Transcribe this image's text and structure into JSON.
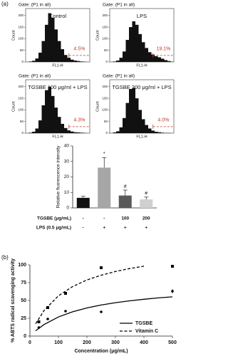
{
  "panel_labels": [
    "(a)",
    "(b)"
  ],
  "chart_data": [
    {
      "type": "histogram",
      "header": "Gate: (P1 in all)",
      "title": "Control",
      "ylabel": "Count",
      "xlabel": "FL1-H",
      "ylim": [
        0,
        230
      ],
      "yticks": [
        0,
        50,
        100,
        150,
        200
      ],
      "xlim": [
        0,
        4
      ],
      "bins": [
        0,
        0.2,
        0.4,
        0.6,
        0.8,
        1,
        1.2,
        1.4,
        1.6,
        1.8,
        2,
        2.2,
        2.4,
        2.6,
        2.8,
        3,
        3.2,
        3.4,
        3.6,
        3.8,
        4
      ],
      "values": [
        0,
        2,
        5,
        15,
        40,
        90,
        160,
        210,
        190,
        140,
        90,
        55,
        30,
        18,
        10,
        6,
        4,
        2,
        1,
        0
      ],
      "color": "#111111",
      "gate_xlim": [
        2.7,
        4
      ],
      "gate_y": 28,
      "annotation": "4.5%"
    },
    {
      "type": "histogram",
      "header": "Gate: (P1 in all)",
      "title": "LPS",
      "ylabel": "Count",
      "xlabel": "FL1-H",
      "ylim": [
        0,
        230
      ],
      "yticks": [
        0,
        50,
        100,
        150,
        200
      ],
      "xlim": [
        0,
        4
      ],
      "bins": [
        0,
        0.2,
        0.4,
        0.6,
        0.8,
        1,
        1.2,
        1.4,
        1.6,
        1.8,
        2,
        2.2,
        2.4,
        2.6,
        2.8,
        3,
        3.2,
        3.4,
        3.6,
        3.8,
        4
      ],
      "values": [
        0,
        2,
        6,
        18,
        45,
        95,
        150,
        175,
        160,
        120,
        85,
        60,
        42,
        32,
        25,
        20,
        14,
        8,
        4,
        1
      ],
      "color": "#111111",
      "gate_xlim": [
        2.7,
        4
      ],
      "gate_y": 28,
      "annotation": "19.1%"
    },
    {
      "type": "histogram",
      "header": "Gate: (P1 in all)",
      "title": "TGSBE 100 μg/ml + LPS",
      "ylabel": "Count",
      "xlabel": "FL1-H",
      "ylim": [
        0,
        230
      ],
      "yticks": [
        0,
        50,
        100,
        150,
        200
      ],
      "xlim": [
        0,
        4
      ],
      "bins": [
        0,
        0.2,
        0.4,
        0.6,
        0.8,
        1,
        1.2,
        1.4,
        1.6,
        1.8,
        2,
        2.2,
        2.4,
        2.6,
        2.8,
        3,
        3.2,
        3.4,
        3.6,
        3.8,
        4
      ],
      "values": [
        0,
        2,
        6,
        20,
        55,
        120,
        185,
        200,
        160,
        110,
        70,
        40,
        22,
        12,
        7,
        4,
        3,
        2,
        1,
        0
      ],
      "color": "#111111",
      "gate_xlim": [
        2.7,
        4
      ],
      "gate_y": 28,
      "annotation": "4.3%"
    },
    {
      "type": "histogram",
      "header": "Gate: (P1 in all)",
      "title": "TGSBE 200 μg/ml + LPS",
      "ylabel": "Count",
      "xlabel": "FL1-H",
      "ylim": [
        0,
        230
      ],
      "yticks": [
        0,
        50,
        100,
        150,
        200
      ],
      "xlim": [
        0,
        4
      ],
      "bins": [
        0,
        0.2,
        0.4,
        0.6,
        0.8,
        1,
        1.2,
        1.4,
        1.6,
        1.8,
        2,
        2.2,
        2.4,
        2.6,
        2.8,
        3,
        3.2,
        3.4,
        3.6,
        3.8,
        4
      ],
      "values": [
        0,
        3,
        8,
        25,
        65,
        130,
        190,
        195,
        150,
        100,
        60,
        35,
        20,
        11,
        6,
        4,
        2,
        1,
        1,
        0
      ],
      "color": "#111111",
      "gate_xlim": [
        2.7,
        4
      ],
      "gate_y": 28,
      "annotation": "4.0%"
    },
    {
      "type": "bar",
      "ylabel": "Relative fluorescence intensity",
      "ylim": [
        0,
        40
      ],
      "yticks": [
        0,
        10,
        20,
        30,
        40
      ],
      "values": [
        6.5,
        26,
        8,
        5.5
      ],
      "errors": [
        1,
        6.5,
        3.5,
        1.5
      ],
      "colors": [
        "#111111",
        "#a6a6a6",
        "#595959",
        "#d0d0d0"
      ],
      "annotations": [
        null,
        "*",
        "#",
        "#"
      ],
      "rows": [
        {
          "label": "TGSBE (μg/mL)",
          "cells": [
            "-",
            "-",
            "100",
            "200"
          ]
        },
        {
          "label": "LPS (0.5 μg/mL)",
          "cells": [
            "-",
            "+",
            "+",
            "+"
          ]
        }
      ]
    },
    {
      "type": "scatter",
      "xlabel": "Concentration (μg/mL)",
      "ylabel": "% ABTS radical scavenging activity",
      "xlim": [
        0,
        500
      ],
      "ylim": [
        0,
        100
      ],
      "xticks": [
        0,
        100,
        200,
        300,
        400,
        500
      ],
      "yticks": [
        0,
        25,
        50,
        75,
        100
      ],
      "series": [
        {
          "name": "TGSBE",
          "color": "#000000",
          "marker": "circle",
          "dash": false,
          "x": [
            31.25,
            62.5,
            125,
            250,
            500
          ],
          "values": [
            12,
            24,
            35,
            34,
            63
          ],
          "errors": [
            1,
            1,
            1,
            1,
            3
          ],
          "fit_x": [
            20,
            50,
            100,
            150,
            200,
            250,
            300,
            350,
            400,
            450,
            500
          ],
          "fit_values": [
            7.5,
            16.3,
            26.8,
            34.1,
            39.5,
            43.6,
            46.9,
            49.5,
            51.7,
            53.6,
            55.1
          ]
        },
        {
          "name": "Vitamin C",
          "color": "#000000",
          "marker": "square",
          "dash": true,
          "x": [
            31.25,
            62.5,
            125,
            250,
            500
          ],
          "values": [
            20,
            40,
            60,
            96,
            98
          ],
          "errors": [
            1,
            1,
            1,
            1,
            1
          ],
          "fit_x": [
            20,
            50,
            100,
            150,
            200,
            250,
            300,
            350,
            400
          ],
          "fit_values": [
            17.3,
            36.1,
            56.5,
            69.6,
            78.8,
            85.5,
            90.7,
            94.8,
            98.1
          ]
        }
      ]
    }
  ]
}
